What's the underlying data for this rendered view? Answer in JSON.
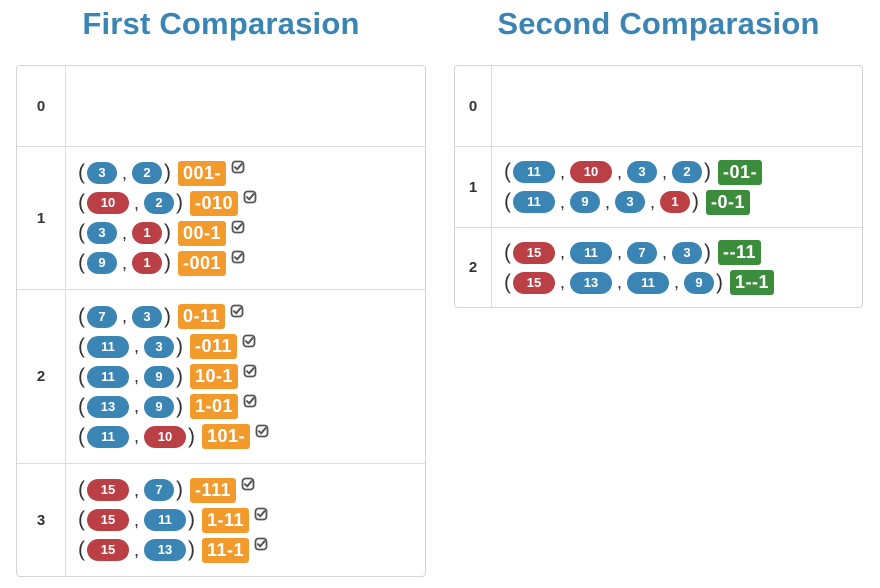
{
  "first": {
    "title": "First Comparasion",
    "rows": [
      {
        "index": "0",
        "groups": []
      },
      {
        "index": "1",
        "groups": [
          {
            "nums": [
              {
                "v": "3",
                "c": "blue"
              },
              {
                "v": "2",
                "c": "blue"
              }
            ],
            "code": "001-",
            "checked": true
          },
          {
            "nums": [
              {
                "v": "10",
                "c": "red"
              },
              {
                "v": "2",
                "c": "blue"
              }
            ],
            "code": "-010",
            "checked": true
          },
          {
            "nums": [
              {
                "v": "3",
                "c": "blue"
              },
              {
                "v": "1",
                "c": "red"
              }
            ],
            "code": "00-1",
            "checked": true
          },
          {
            "nums": [
              {
                "v": "9",
                "c": "blue"
              },
              {
                "v": "1",
                "c": "red"
              }
            ],
            "code": "-001",
            "checked": true
          }
        ]
      },
      {
        "index": "2",
        "groups": [
          {
            "nums": [
              {
                "v": "7",
                "c": "blue"
              },
              {
                "v": "3",
                "c": "blue"
              }
            ],
            "code": "0-11",
            "checked": true
          },
          {
            "nums": [
              {
                "v": "11",
                "c": "blue"
              },
              {
                "v": "3",
                "c": "blue"
              }
            ],
            "code": "-011",
            "checked": true
          },
          {
            "nums": [
              {
                "v": "11",
                "c": "blue"
              },
              {
                "v": "9",
                "c": "blue"
              }
            ],
            "code": "10-1",
            "checked": true
          },
          {
            "nums": [
              {
                "v": "13",
                "c": "blue"
              },
              {
                "v": "9",
                "c": "blue"
              }
            ],
            "code": "1-01",
            "checked": true
          },
          {
            "nums": [
              {
                "v": "11",
                "c": "blue"
              },
              {
                "v": "10",
                "c": "red"
              }
            ],
            "code": "101-",
            "checked": true
          }
        ]
      },
      {
        "index": "3",
        "groups": [
          {
            "nums": [
              {
                "v": "15",
                "c": "red"
              },
              {
                "v": "7",
                "c": "blue"
              }
            ],
            "code": "-111",
            "checked": true
          },
          {
            "nums": [
              {
                "v": "15",
                "c": "red"
              },
              {
                "v": "11",
                "c": "blue"
              }
            ],
            "code": "1-11",
            "checked": true
          },
          {
            "nums": [
              {
                "v": "15",
                "c": "red"
              },
              {
                "v": "13",
                "c": "blue"
              }
            ],
            "code": "11-1",
            "checked": true
          }
        ]
      }
    ]
  },
  "second": {
    "title": "Second Comparasion",
    "rows": [
      {
        "index": "0",
        "groups": []
      },
      {
        "index": "1",
        "groups": [
          {
            "nums": [
              {
                "v": "11",
                "c": "blue"
              },
              {
                "v": "10",
                "c": "red"
              },
              {
                "v": "3",
                "c": "blue"
              },
              {
                "v": "2",
                "c": "blue"
              }
            ],
            "code": "-01-",
            "checked": false
          },
          {
            "nums": [
              {
                "v": "11",
                "c": "blue"
              },
              {
                "v": "9",
                "c": "blue"
              },
              {
                "v": "3",
                "c": "blue"
              },
              {
                "v": "1",
                "c": "red"
              }
            ],
            "code": "-0-1",
            "checked": false
          }
        ]
      },
      {
        "index": "2",
        "groups": [
          {
            "nums": [
              {
                "v": "15",
                "c": "red"
              },
              {
                "v": "11",
                "c": "blue"
              },
              {
                "v": "7",
                "c": "blue"
              },
              {
                "v": "3",
                "c": "blue"
              }
            ],
            "code": "--11",
            "checked": false
          },
          {
            "nums": [
              {
                "v": "15",
                "c": "red"
              },
              {
                "v": "13",
                "c": "blue"
              },
              {
                "v": "11",
                "c": "blue"
              },
              {
                "v": "9",
                "c": "blue"
              }
            ],
            "code": "1--1",
            "checked": false
          }
        ]
      }
    ]
  },
  "colors": {
    "blue": "#3a85b4",
    "red": "#bb4045",
    "orange": "#f39a2c",
    "green": "#3b8d3b",
    "title": "#3a85b4"
  },
  "icons": {
    "check": "check-square-icon"
  }
}
